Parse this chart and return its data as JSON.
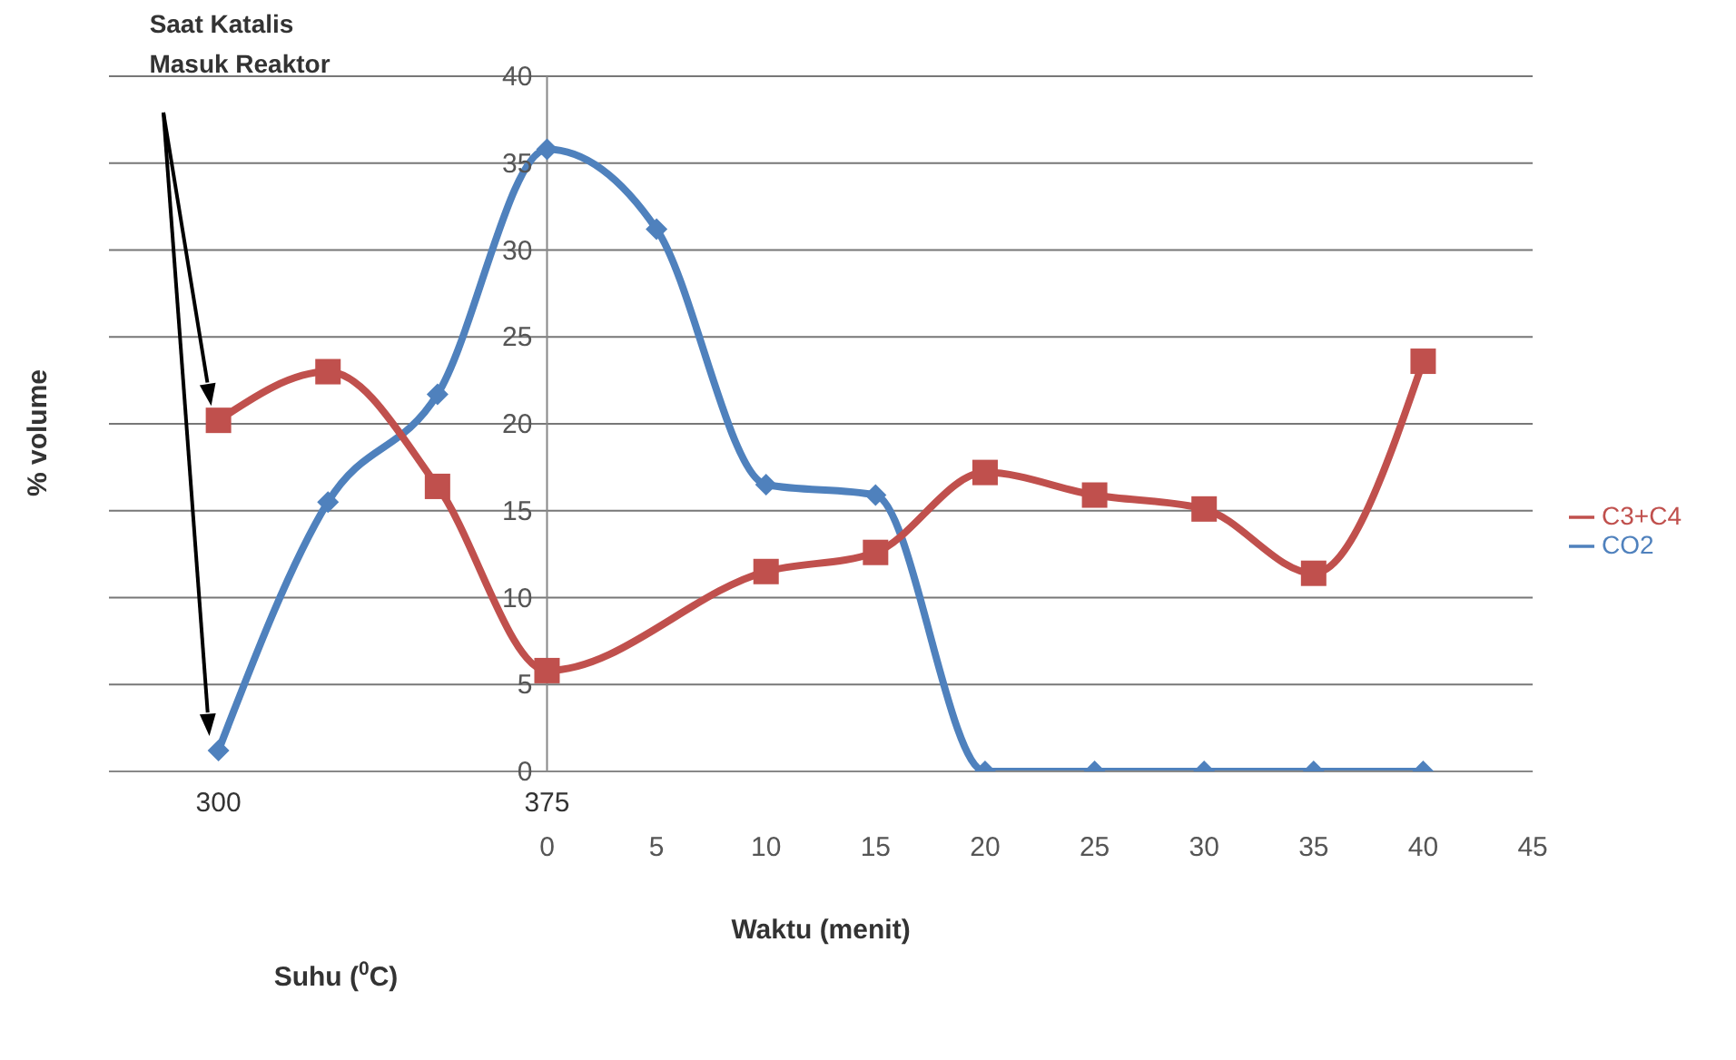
{
  "chart_data": {
    "type": "line",
    "xlabel": "Waktu (menit)",
    "ylabel": "% volume",
    "xlim": [
      -20,
      45
    ],
    "xticks": [
      0,
      5,
      10,
      15,
      20,
      25,
      30,
      35,
      40,
      45
    ],
    "ylim": [
      0,
      40
    ],
    "yticks": [
      0,
      5,
      10,
      15,
      20,
      25,
      30,
      35,
      40
    ],
    "grid": "y",
    "legend": "right",
    "line_style": "solid",
    "series": [
      {
        "name": "CO2",
        "color": "#4f81bd",
        "marker": "diamond",
        "x": [
          -15,
          -10,
          -5,
          0,
          5,
          10,
          15,
          20,
          25,
          30,
          35,
          40
        ],
        "values": [
          1.2,
          15.5,
          21.7,
          35.8,
          31.2,
          16.5,
          15.9,
          0,
          0,
          0,
          0,
          0
        ]
      },
      {
        "name": "C3+C4",
        "color": "#c0504d",
        "marker": "square",
        "x": [
          -15,
          -10,
          -5,
          0,
          10,
          15,
          20,
          25,
          30,
          35,
          40
        ],
        "values": [
          20.2,
          23,
          16.4,
          5.8,
          11.5,
          12.6,
          17.2,
          15.9,
          15.1,
          11.4,
          23.6
        ]
      }
    ],
    "annotations": [
      "Saat Katalis Masuk Reaktor",
      "300",
      "375",
      "Suhu ($^{0}$C)"
    ]
  }
}
